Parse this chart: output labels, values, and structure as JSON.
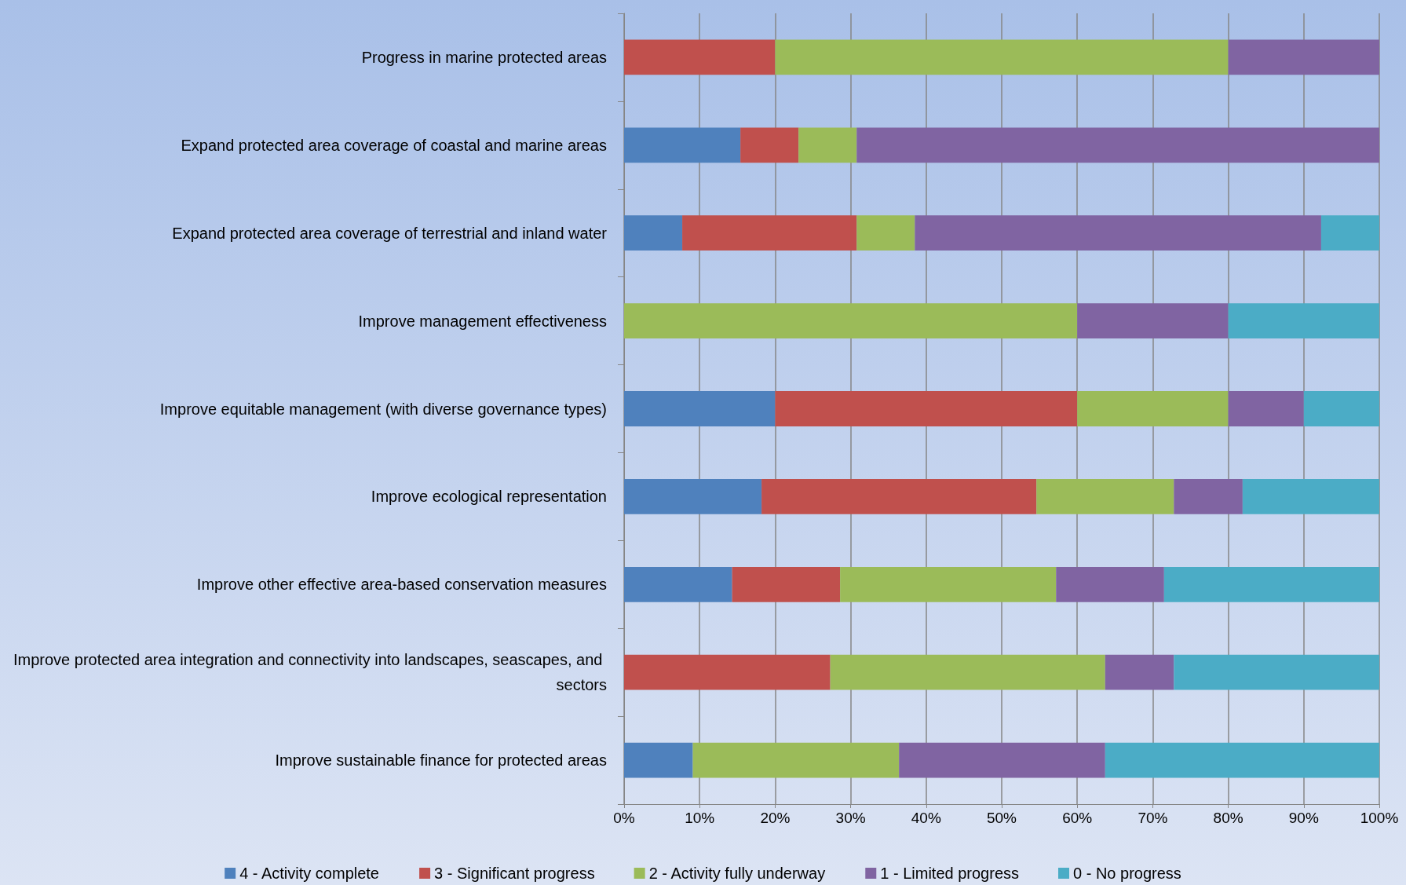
{
  "chart_data": {
    "type": "bar",
    "orientation": "horizontal",
    "stacked": true,
    "categories": [
      "Progress in marine protected areas",
      "Expand protected area coverage of coastal and marine areas",
      "Expand protected area coverage of terrestrial and inland water",
      "Improve management effectiveness",
      "Improve equitable management (with diverse governance types)",
      "Improve ecological representation",
      "Improve other effective area-based conservation measures",
      "Improve protected area integration and connectivity into landscapes, seascapes, and sectors",
      "Improve sustainable finance for protected areas"
    ],
    "series": [
      {
        "name": "4 - Activity complete",
        "color": "#4f81bd",
        "values": [
          0,
          15.4,
          7.7,
          0,
          20,
          18.2,
          14.3,
          0,
          9.1
        ]
      },
      {
        "name": "3 - Significant progress",
        "color": "#c0504d",
        "values": [
          20,
          7.7,
          23.1,
          0,
          40,
          36.4,
          14.3,
          27.3,
          0
        ]
      },
      {
        "name": "2 - Activity fully underway",
        "color": "#9bbb59",
        "values": [
          60,
          7.7,
          7.7,
          60,
          20,
          18.2,
          28.6,
          36.4,
          27.3
        ]
      },
      {
        "name": "1 - Limited progress",
        "color": "#8064a2",
        "values": [
          20,
          69.2,
          53.8,
          20,
          10,
          9.1,
          14.3,
          9.1,
          27.3
        ]
      },
      {
        "name": "0 - No progress",
        "color": "#4bacc6",
        "values": [
          0,
          0,
          7.7,
          20,
          10,
          18.2,
          28.6,
          27.3,
          36.4
        ]
      }
    ],
    "xlim": [
      0,
      100
    ],
    "xticks": [
      {
        "value": 0,
        "label": "0%"
      },
      {
        "value": 10,
        "label": "10%"
      },
      {
        "value": 20,
        "label": "20%"
      },
      {
        "value": 30,
        "label": "30%"
      },
      {
        "value": 40,
        "label": "40%"
      },
      {
        "value": 50,
        "label": "50%"
      },
      {
        "value": 60,
        "label": "60%"
      },
      {
        "value": 70,
        "label": "70%"
      },
      {
        "value": 80,
        "label": "80%"
      },
      {
        "value": 90,
        "label": "90%"
      },
      {
        "value": 100,
        "label": "100%"
      }
    ],
    "grid": "x",
    "legend": "bottom"
  }
}
